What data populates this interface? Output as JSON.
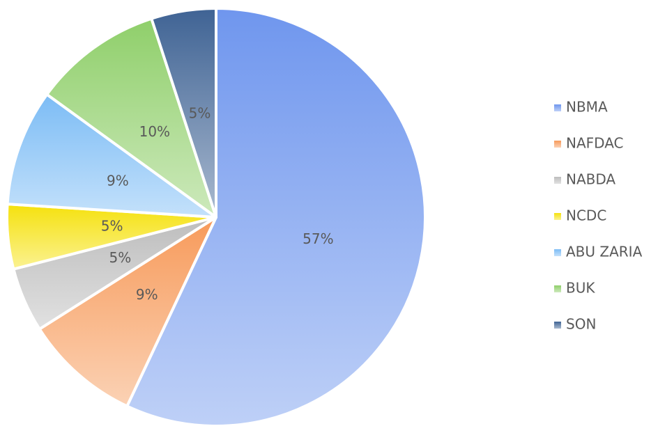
{
  "chart_data": {
    "type": "pie",
    "categories": [
      "NBMA",
      "NAFDAC",
      "NABDA",
      "NCDC",
      "ABU ZARIA",
      "BUK",
      "SON"
    ],
    "values": [
      57,
      9,
      5,
      5,
      9,
      10,
      5
    ],
    "value_labels": [
      "57%",
      "9%",
      "5%",
      "5%",
      "9%",
      "10%",
      "5%"
    ],
    "colors": [
      "#6f96ee",
      "#f79a5a",
      "#bdbdbd",
      "#f5e10d",
      "#7cbcf5",
      "#8fcf6a",
      "#3f6394"
    ],
    "legend": "right"
  }
}
